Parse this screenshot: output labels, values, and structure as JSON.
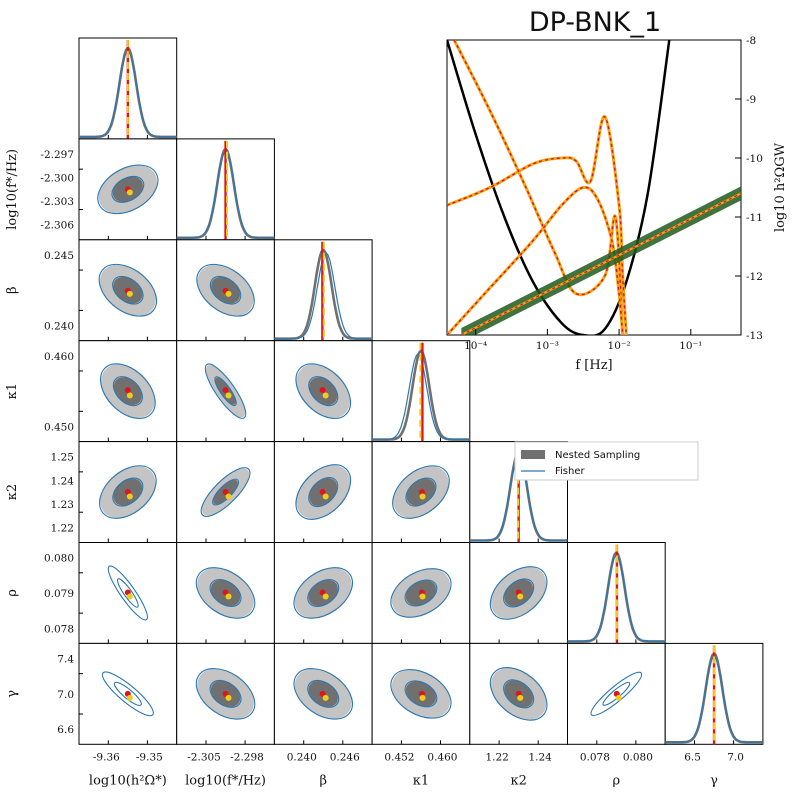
{
  "title": "DP-BNK_1",
  "legend": {
    "nested": "Nested Sampling",
    "fisher": "Fisher"
  },
  "colors": {
    "nested_dark": "#707070",
    "nested_light": "#c4c4c4",
    "fisher": "#2a78b3",
    "truth": "#e0151b",
    "estimate": "#f2cc1b",
    "signal": "#f2a516",
    "pls": "#000000",
    "band": "#1f5a1f"
  },
  "chart_data": [
    {
      "type": "scatter",
      "name": "corner-plot",
      "parameters": [
        {
          "label": "log10(h²Ω*)",
          "ticks": [
            "-9.36",
            "-9.35"
          ],
          "truth": 0.5,
          "estimate": 0.5
        },
        {
          "label": "log10(f*/Hz)",
          "ticks": [
            "-2.305",
            "-2.298"
          ],
          "ticks_y": [
            "-2.297",
            "-2.300",
            "-2.303",
            "-2.306"
          ],
          "truth": 0.5,
          "estimate": 0.55
        },
        {
          "label": "β",
          "ticks": [
            "0.240",
            "0.246"
          ],
          "ticks_y": [
            "0.245",
            "0.240"
          ],
          "truth": 0.47,
          "estimate": 0.52
        },
        {
          "label": "κ1",
          "ticks": [
            "0.452",
            "0.460"
          ],
          "ticks_y": [
            "0.460",
            "0.450"
          ],
          "truth": 0.55,
          "estimate": 0.48
        },
        {
          "label": "κ2",
          "ticks": [
            "1.22",
            "1.24"
          ],
          "ticks_y": [
            "1.25",
            "1.24",
            "1.23",
            "1.22"
          ],
          "truth": 0.5,
          "estimate": 0.48
        },
        {
          "label": "ρ",
          "ticks": [
            "0.078",
            "0.080"
          ],
          "ticks_y": [
            "0.080",
            "0.079",
            "0.078"
          ],
          "truth": 0.52,
          "estimate": 0.52
        },
        {
          "label": "γ",
          "ticks": [
            "6.5",
            "7.0"
          ],
          "ticks_y": [
            "7.4",
            "7.0",
            "6.6"
          ],
          "truth": 0.5,
          "estimate": 0.5
        }
      ]
    },
    {
      "type": "line",
      "name": "gw-spectrum",
      "xlabel": "f [Hz]",
      "ylabel": "log10 h²ΩGW",
      "xscale": "log",
      "xlim": [
        -4.4,
        -0.3
      ],
      "ylim": [
        -13,
        -8
      ],
      "xticks": [
        "10⁻⁴",
        "10⁻³",
        "10⁻²",
        "10⁻¹"
      ],
      "yticks": [
        "-8",
        "-9",
        "-10",
        "-11",
        "-12",
        "-13"
      ],
      "series": [
        {
          "name": "sensitivity-curve",
          "x": [
            -4.4,
            -4.0,
            -3.6,
            -3.2,
            -2.8,
            -2.5,
            -2.2,
            -1.9,
            -1.6,
            -1.3
          ],
          "y": [
            -8.0,
            -9.6,
            -11.0,
            -12.1,
            -12.8,
            -13.0,
            -12.9,
            -12.1,
            -10.6,
            -8.0
          ]
        },
        {
          "name": "signal-total",
          "x": [
            -4.4,
            -3.8,
            -3.2,
            -2.8,
            -2.6,
            -2.4,
            -2.2,
            -2.0,
            -1.95,
            -1.9
          ],
          "y": [
            -10.8,
            -10.5,
            -10.1,
            -10.0,
            -10.05,
            -10.4,
            -9.3,
            -10.8,
            -12.0,
            -13.0
          ]
        },
        {
          "name": "signal-steep",
          "x": [
            -4.3,
            -3.8,
            -3.3,
            -2.9,
            -2.6,
            -2.2,
            -2.05,
            -1.95
          ],
          "y": [
            -8.0,
            -9.2,
            -10.5,
            -11.6,
            -12.3,
            -12.0,
            -11.0,
            -13.0
          ]
        },
        {
          "name": "signal-bump",
          "x": [
            -4.4,
            -3.8,
            -3.2,
            -2.8,
            -2.5,
            -2.3,
            -2.1,
            -2.0,
            -1.95
          ],
          "y": [
            -13.0,
            -12.2,
            -11.4,
            -10.8,
            -10.5,
            -10.7,
            -11.4,
            -12.3,
            -13.0
          ]
        },
        {
          "name": "power-law-band",
          "x": [
            -4.2,
            -0.3
          ],
          "y": [
            -13.0,
            -10.6
          ]
        }
      ]
    }
  ]
}
